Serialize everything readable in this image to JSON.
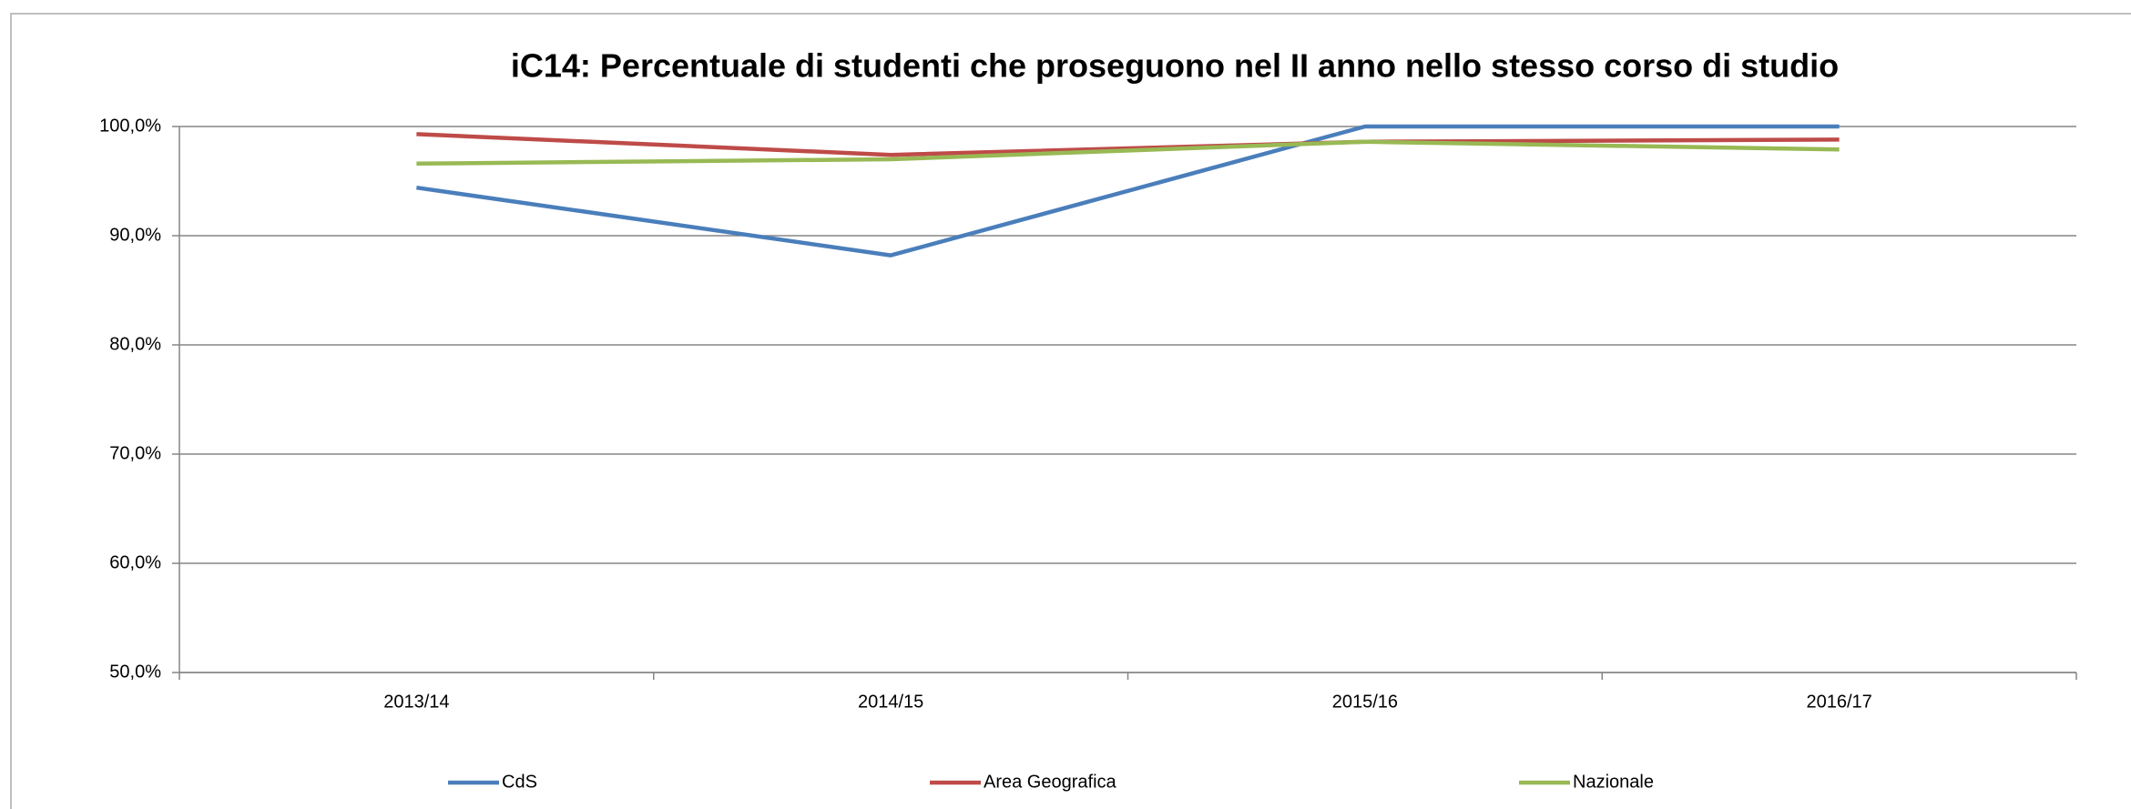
{
  "chart_data": {
    "type": "line",
    "title": "iC14: Percentuale di studenti che proseguono nel II anno nello stesso corso di studio",
    "categories": [
      "2013/14",
      "2014/15",
      "2015/16",
      "2016/17"
    ],
    "series": [
      {
        "name": "CdS",
        "color": "#4a7ebb",
        "values": [
          94.4,
          88.2,
          100,
          100
        ]
      },
      {
        "name": "Area Geografica",
        "color": "#be4b48",
        "values": [
          99.3,
          97.4,
          98.6,
          98.8
        ]
      },
      {
        "name": "Nazionale",
        "color": "#98b954",
        "values": [
          96.6,
          97.0,
          98.6,
          97.9
        ]
      }
    ],
    "ylim": [
      50,
      100
    ],
    "yticks": [
      {
        "value": 50,
        "label": "50,0%"
      },
      {
        "value": 60,
        "label": "60,0%"
      },
      {
        "value": 70,
        "label": "70,0%"
      },
      {
        "value": 80,
        "label": "80,0%"
      },
      {
        "value": 90,
        "label": "90,0%"
      },
      {
        "value": 100,
        "label": "100,0%"
      }
    ],
    "grid": true,
    "legend": "bottom"
  }
}
